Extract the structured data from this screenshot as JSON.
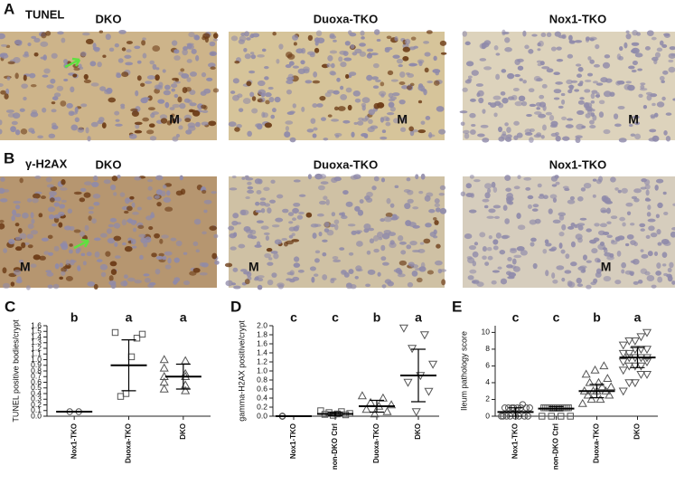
{
  "figure": {
    "panels": [
      {
        "label": "A",
        "stain": "TUNEL",
        "images": [
          {
            "title": "DKO",
            "marker": "M"
          },
          {
            "title": "Duoxa-TKO",
            "marker": "M"
          },
          {
            "title": "Nox1-TKO",
            "marker": "M"
          }
        ]
      },
      {
        "label": "B",
        "stain": "γ-H2AX",
        "images": [
          {
            "title": "DKO",
            "marker": "M"
          },
          {
            "title": "Duoxa-TKO",
            "marker": "M"
          },
          {
            "title": "Nox1-TKO",
            "marker": "M"
          }
        ]
      }
    ],
    "chart_labels": [
      "C",
      "D",
      "E"
    ]
  },
  "chart_data": [
    {
      "type": "dot",
      "ylabel": "TUNEL positive bodies/crypt",
      "categories": [
        "Nox1-TKO",
        "Duoxa-TKO",
        "DKO"
      ],
      "letters": [
        "b",
        "a",
        "a"
      ],
      "markers": [
        "circle",
        "square",
        "triangle"
      ],
      "color": "#555",
      "points": [
        [
          0.08,
          0.08
        ],
        [
          1.48,
          1.45,
          1.38,
          1.05,
          0.4,
          0.35
        ],
        [
          1.0,
          0.98,
          0.85,
          0.75,
          0.7,
          0.7,
          0.6,
          0.55,
          0.48,
          0.45
        ]
      ],
      "means": [
        0.08,
        0.9,
        0.7
      ],
      "errors": [
        0,
        0.45,
        0.22
      ],
      "ylim": [
        0,
        1.6
      ],
      "yticks": [
        {
          "value": 0,
          "label": "0.0"
        },
        0.1,
        0.2,
        0.3,
        0.4,
        0.5,
        0.6,
        0.7,
        0.8,
        0.9,
        {
          "value": 1,
          "label": "1.0"
        },
        1.1,
        1.2,
        1.3,
        1.4,
        1.5,
        1.6
      ]
    },
    {
      "type": "dot",
      "ylabel": "gamma-H2AX positive/crypt",
      "categories": [
        "Nox1-TKO",
        "non-DKO Ctrl",
        "Duoxa-TKO",
        "DKO"
      ],
      "letters": [
        "c",
        "c",
        "b",
        "a"
      ],
      "markers": [
        "circle",
        "square",
        "triangle",
        "triangle-down"
      ],
      "color": "#555",
      "points": [
        [
          0,
          0,
          0,
          0,
          0
        ],
        [
          0.12,
          0.1,
          0.08,
          0.06,
          0.05,
          0.04,
          0.03,
          0.02
        ],
        [
          0.45,
          0.4,
          0.3,
          0.25,
          0.22,
          0.15,
          0.1,
          0.05
        ],
        [
          1.95,
          1.8,
          1.5,
          1.15,
          0.9,
          0.75,
          0.55,
          0.1
        ]
      ],
      "means": [
        0,
        0.05,
        0.22,
        0.9
      ],
      "errors": [
        0,
        0.04,
        0.13,
        0.58
      ],
      "ylim": [
        0,
        2
      ],
      "yticks": [
        {
          "value": 0,
          "label": "0.0"
        },
        0.2,
        0.4,
        0.6,
        0.8,
        {
          "value": 1,
          "label": "1.0"
        },
        1.2,
        1.4,
        1.6,
        1.8,
        {
          "value": 2,
          "label": "2.0"
        }
      ]
    },
    {
      "type": "dot",
      "ylabel": "Ileum pathology score",
      "categories": [
        "Nox1-TKO",
        "non-DKO Ctrl",
        "Duoxa-TKO",
        "DKO"
      ],
      "letters": [
        "c",
        "c",
        "b",
        "a"
      ],
      "markers": [
        "circle",
        "square",
        "triangle",
        "triangle-down"
      ],
      "color": "#555",
      "points": [
        [
          0,
          0,
          0,
          0,
          0,
          0,
          0,
          0,
          1,
          1,
          1,
          1,
          1,
          1,
          1,
          1,
          1.4
        ],
        [
          0,
          0,
          0,
          0,
          1,
          1,
          1,
          1,
          1,
          1,
          1,
          1,
          1,
          1,
          1,
          1
        ],
        [
          1.5,
          2,
          2,
          2.5,
          2.5,
          3,
          3,
          3,
          3,
          3.5,
          3.5,
          4,
          4,
          4.5,
          5,
          5.5,
          6
        ],
        [
          3,
          4,
          4,
          5,
          5,
          5.5,
          6,
          6,
          6,
          6.5,
          6.5,
          7,
          7,
          7,
          7,
          7.5,
          7.5,
          8,
          8,
          8,
          8.5,
          9,
          9,
          9.5,
          10
        ]
      ],
      "means": [
        0.5,
        0.9,
        3,
        7
      ],
      "errors": [
        0.5,
        0.25,
        0.8,
        1.2
      ],
      "ylim": [
        0,
        10.8
      ],
      "yticks": [
        0,
        2,
        4,
        6,
        8,
        10
      ]
    }
  ]
}
